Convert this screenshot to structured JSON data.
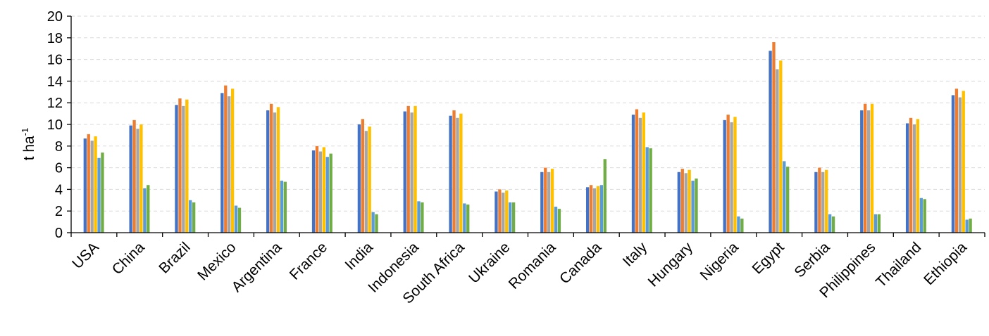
{
  "chart_data": {
    "type": "bar",
    "title": "",
    "xlabel": "",
    "ylabel": "t ha",
    "ylabel_superscript": "-1",
    "ylim": [
      0,
      20
    ],
    "yticks": [
      0,
      2,
      4,
      6,
      8,
      10,
      12,
      14,
      16,
      18,
      20
    ],
    "grid": true,
    "legend": "none",
    "categories": [
      "USA",
      "China",
      "Brazil",
      "Mexico",
      "Argentina",
      "France",
      "India",
      "Indonesia",
      "South Africa",
      "Ukraine",
      "Romania",
      "Canada",
      "Italy",
      "Hungary",
      "Nigeria",
      "Egypt",
      "Serbia",
      "Philippines",
      "Thailand",
      "Ethiopia"
    ],
    "series": [
      {
        "color": "#4472c4",
        "values": [
          8.7,
          9.9,
          11.8,
          12.9,
          11.3,
          7.6,
          10.0,
          11.2,
          10.8,
          3.8,
          5.6,
          4.2,
          10.9,
          5.6,
          10.4,
          16.8,
          5.6,
          11.3,
          10.1,
          12.7
        ]
      },
      {
        "color": "#ed7d31",
        "values": [
          9.1,
          10.4,
          12.4,
          13.6,
          11.9,
          8.0,
          10.5,
          11.7,
          11.3,
          4.0,
          6.0,
          4.4,
          11.4,
          5.9,
          10.9,
          17.6,
          6.0,
          11.9,
          10.6,
          13.3
        ]
      },
      {
        "color": "#a5a5a5",
        "values": [
          8.5,
          9.6,
          11.7,
          12.6,
          11.1,
          7.5,
          9.4,
          11.1,
          10.6,
          3.7,
          5.6,
          4.1,
          10.6,
          5.5,
          10.2,
          15.1,
          5.6,
          11.3,
          10.0,
          12.5
        ]
      },
      {
        "color": "#ffc000",
        "values": [
          8.9,
          10.0,
          12.3,
          13.3,
          11.6,
          7.9,
          9.8,
          11.7,
          11.0,
          3.9,
          5.9,
          4.3,
          11.1,
          5.8,
          10.7,
          15.9,
          5.8,
          11.9,
          10.5,
          13.1
        ]
      },
      {
        "color": "#5b9bd5",
        "values": [
          6.9,
          4.1,
          3.0,
          2.5,
          4.8,
          7.0,
          1.9,
          2.9,
          2.7,
          2.8,
          2.4,
          4.4,
          7.9,
          4.8,
          1.5,
          6.6,
          1.7,
          1.7,
          3.2,
          1.2
        ]
      },
      {
        "color": "#70ad47",
        "values": [
          7.4,
          4.4,
          2.8,
          2.3,
          4.7,
          7.3,
          1.7,
          2.8,
          2.6,
          2.8,
          2.2,
          6.8,
          7.8,
          5.0,
          1.3,
          6.1,
          1.5,
          1.7,
          3.1,
          1.3
        ]
      }
    ]
  }
}
